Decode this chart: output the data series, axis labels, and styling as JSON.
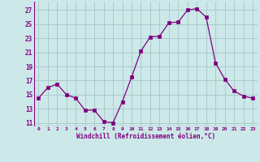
{
  "x": [
    0,
    1,
    2,
    3,
    4,
    5,
    6,
    7,
    8,
    9,
    10,
    11,
    12,
    13,
    14,
    15,
    16,
    17,
    18,
    19,
    20,
    21,
    22,
    23
  ],
  "y": [
    14.5,
    16.0,
    16.5,
    15.0,
    14.5,
    12.8,
    12.8,
    11.2,
    11.0,
    14.0,
    17.5,
    21.2,
    23.2,
    23.3,
    25.2,
    25.3,
    27.0,
    27.2,
    26.0,
    19.5,
    17.2,
    15.5,
    14.8,
    14.5
  ],
  "line_color": "#800080",
  "marker": "s",
  "marker_size": 2.5,
  "bg_color": "#cce8e8",
  "grid_color": "#aacccc",
  "xlabel": "Windchill (Refroidissement éolien,°C)",
  "xlabel_color": "#800080",
  "tick_color": "#800080",
  "ylim": [
    10.5,
    28.2
  ],
  "xlim": [
    -0.5,
    23.5
  ],
  "yticks": [
    11,
    13,
    15,
    17,
    19,
    21,
    23,
    25,
    27
  ],
  "xticks": [
    0,
    1,
    2,
    3,
    4,
    5,
    6,
    7,
    8,
    9,
    10,
    11,
    12,
    13,
    14,
    15,
    16,
    17,
    18,
    19,
    20,
    21,
    22,
    23
  ],
  "xtick_labels": [
    "0",
    "1",
    "2",
    "3",
    "4",
    "5",
    "6",
    "7",
    "8",
    "9",
    "10",
    "11",
    "12",
    "13",
    "14",
    "15",
    "16",
    "17",
    "18",
    "19",
    "20",
    "21",
    "22",
    "23"
  ]
}
